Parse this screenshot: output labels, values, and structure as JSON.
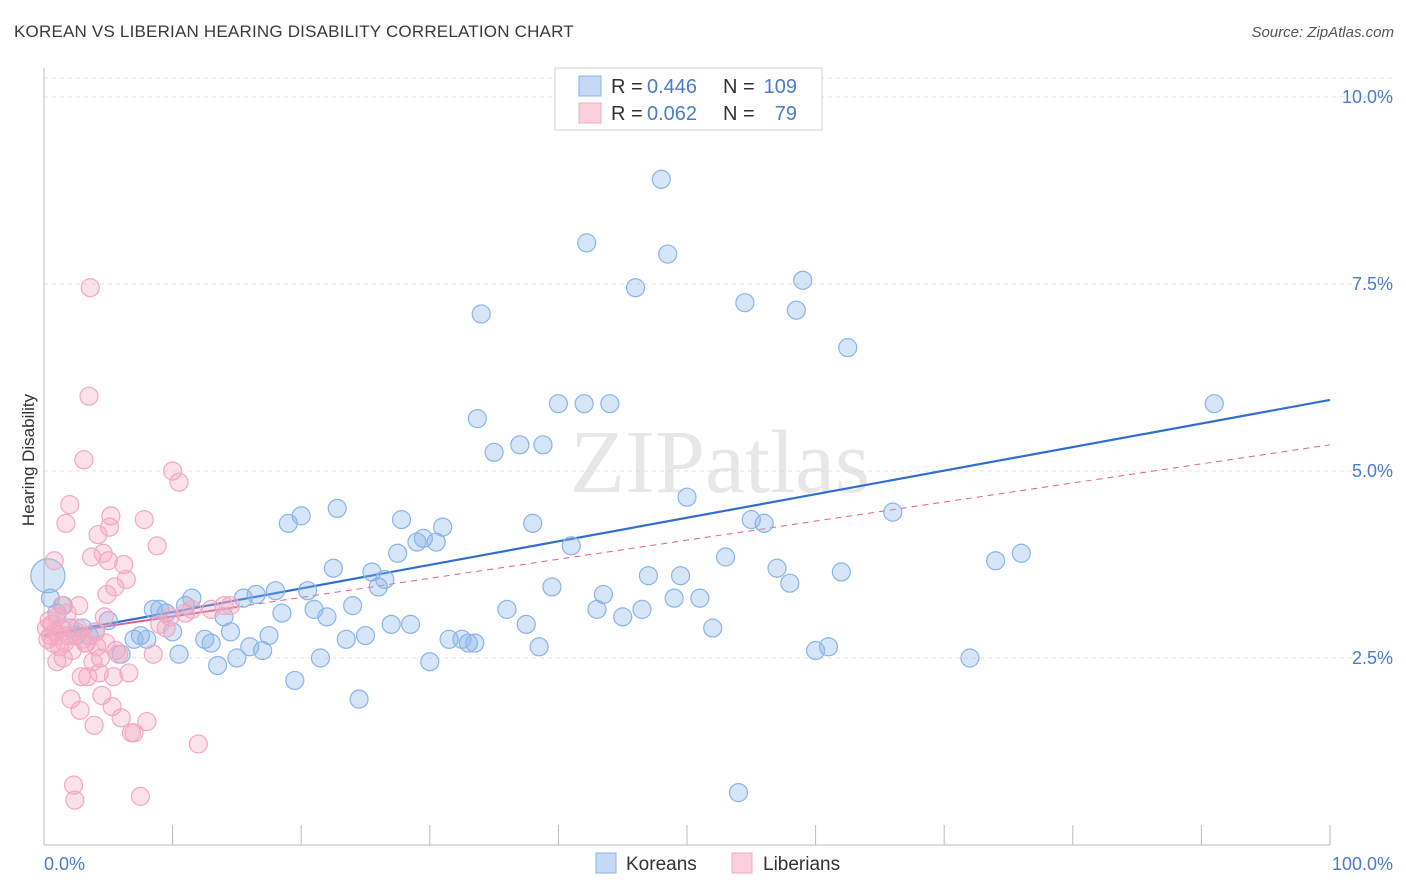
{
  "chart_data": {
    "type": "scatter",
    "title": "KOREAN VS LIBERIAN HEARING DISABILITY CORRELATION CHART",
    "source": "Source: ZipAtlas.com",
    "ylabel": "Hearing Disability",
    "xlabel": "",
    "xlim": [
      0,
      100
    ],
    "ylim": [
      0,
      10
    ],
    "x_tick_labels": [
      "0.0%",
      "100.0%"
    ],
    "y_ticks": [
      2.5,
      5.0,
      7.5,
      10.0
    ],
    "y_tick_labels": [
      "2.5%",
      "5.0%",
      "7.5%",
      "10.0%"
    ],
    "watermark": "ZIPatlas",
    "legend": {
      "rows": [
        {
          "r_label": "R =",
          "r_value": "0.446",
          "n_label": "N =",
          "n_value": "109"
        },
        {
          "r_label": "R =",
          "r_value": "0.062",
          "n_label": "N =",
          "n_value": "79"
        }
      ]
    },
    "series": [
      {
        "name": "Koreans",
        "color": "#8ab4e8",
        "line_color": "#2f6fcf",
        "trend": {
          "x0": 0,
          "y0": 2.8,
          "x1": 100,
          "y1": 5.95
        },
        "points": [
          [
            0.3,
            3.6
          ],
          [
            0.5,
            3.3
          ],
          [
            1,
            3.1
          ],
          [
            1.5,
            3.2
          ],
          [
            2,
            2.9
          ],
          [
            2.5,
            2.8
          ],
          [
            3,
            2.9
          ],
          [
            3.5,
            2.8
          ],
          [
            4,
            2.85
          ],
          [
            5,
            3.0
          ],
          [
            6,
            2.55
          ],
          [
            7,
            2.75
          ],
          [
            7.5,
            2.8
          ],
          [
            8,
            2.75
          ],
          [
            8.5,
            3.15
          ],
          [
            9.5,
            3.1
          ],
          [
            10,
            2.85
          ],
          [
            10.5,
            2.55
          ],
          [
            11,
            3.2
          ],
          [
            12.5,
            2.75
          ],
          [
            13,
            2.7
          ],
          [
            13.5,
            2.4
          ],
          [
            14,
            3.05
          ],
          [
            14.5,
            2.85
          ],
          [
            15,
            2.5
          ],
          [
            15.5,
            3.3
          ],
          [
            16,
            2.65
          ],
          [
            16.5,
            3.35
          ],
          [
            17,
            2.6
          ],
          [
            17.5,
            2.8
          ],
          [
            18,
            3.4
          ],
          [
            18.5,
            3.1
          ],
          [
            19,
            4.3
          ],
          [
            19.5,
            2.2
          ],
          [
            20,
            4.4
          ],
          [
            20.5,
            3.4
          ],
          [
            21,
            3.15
          ],
          [
            21.5,
            2.5
          ],
          [
            22,
            3.05
          ],
          [
            22.5,
            3.7
          ],
          [
            22.8,
            4.5
          ],
          [
            23.5,
            2.75
          ],
          [
            24,
            3.2
          ],
          [
            24.5,
            1.95
          ],
          [
            25,
            2.8
          ],
          [
            25.5,
            3.65
          ],
          [
            26,
            3.45
          ],
          [
            26.5,
            3.55
          ],
          [
            27,
            2.95
          ],
          [
            27.5,
            3.9
          ],
          [
            27.8,
            4.35
          ],
          [
            28.5,
            2.95
          ],
          [
            29,
            4.05
          ],
          [
            29.5,
            4.1
          ],
          [
            30,
            2.45
          ],
          [
            30.5,
            4.05
          ],
          [
            31,
            4.25
          ],
          [
            31.5,
            2.75
          ],
          [
            32.5,
            2.75
          ],
          [
            33,
            2.7
          ],
          [
            33.5,
            2.7
          ],
          [
            33.7,
            5.7
          ],
          [
            34,
            7.1
          ],
          [
            35,
            5.25
          ],
          [
            36,
            3.15
          ],
          [
            37,
            5.35
          ],
          [
            37.5,
            2.95
          ],
          [
            38,
            4.3
          ],
          [
            38.5,
            2.65
          ],
          [
            38.8,
            5.35
          ],
          [
            39.5,
            3.45
          ],
          [
            40,
            5.9
          ],
          [
            41,
            4.0
          ],
          [
            42,
            5.9
          ],
          [
            42.2,
            8.05
          ],
          [
            43,
            3.15
          ],
          [
            44,
            5.9
          ],
          [
            45,
            3.05
          ],
          [
            46,
            7.45
          ],
          [
            46.5,
            3.15
          ],
          [
            47,
            3.6
          ],
          [
            48,
            8.9
          ],
          [
            48.5,
            7.9
          ],
          [
            49,
            3.3
          ],
          [
            49.5,
            3.6
          ],
          [
            50,
            4.65
          ],
          [
            51,
            3.3
          ],
          [
            53,
            3.85
          ],
          [
            54,
            0.7
          ],
          [
            54.5,
            7.25
          ],
          [
            55,
            4.35
          ],
          [
            56,
            4.3
          ],
          [
            57,
            3.7
          ],
          [
            58,
            3.5
          ],
          [
            58.5,
            7.15
          ],
          [
            59,
            7.55
          ],
          [
            60,
            2.6
          ],
          [
            61,
            2.65
          ],
          [
            62,
            3.65
          ],
          [
            62.5,
            6.65
          ],
          [
            66,
            4.45
          ],
          [
            72,
            2.5
          ],
          [
            74,
            3.8
          ],
          [
            76,
            3.9
          ],
          [
            91,
            5.9
          ],
          [
            43.5,
            3.35
          ],
          [
            52,
            2.9
          ],
          [
            9,
            3.15
          ],
          [
            11.5,
            3.3
          ]
        ]
      },
      {
        "name": "Liberians",
        "color": "#f4a8c0",
        "line_color": "#e0608a",
        "trend": {
          "x0": 0,
          "y0": 2.8,
          "x1": 100,
          "y1": 5.35
        },
        "trend_solid_end": 15,
        "points": [
          [
            0.2,
            2.9
          ],
          [
            0.3,
            2.75
          ],
          [
            0.4,
            3.0
          ],
          [
            0.5,
            2.8
          ],
          [
            0.6,
            2.95
          ],
          [
            0.7,
            2.7
          ],
          [
            0.8,
            3.8
          ],
          [
            0.9,
            2.85
          ],
          [
            1,
            3.05
          ],
          [
            1.1,
            2.8
          ],
          [
            1.2,
            2.65
          ],
          [
            1.3,
            2.9
          ],
          [
            1.4,
            3.2
          ],
          [
            1.5,
            2.5
          ],
          [
            1.6,
            2.7
          ],
          [
            1.7,
            4.3
          ],
          [
            1.8,
            3.1
          ],
          [
            1.9,
            2.8
          ],
          [
            2,
            4.55
          ],
          [
            2.1,
            1.95
          ],
          [
            2.2,
            2.6
          ],
          [
            2.3,
            0.8
          ],
          [
            2.4,
            0.6
          ],
          [
            2.5,
            2.85
          ],
          [
            2.6,
            2.9
          ],
          [
            2.7,
            3.2
          ],
          [
            2.8,
            1.8
          ],
          [
            2.9,
            2.25
          ],
          [
            3,
            2.75
          ],
          [
            3.1,
            5.15
          ],
          [
            3.2,
            2.7
          ],
          [
            3.3,
            2.7
          ],
          [
            3.4,
            2.25
          ],
          [
            3.5,
            6.0
          ],
          [
            3.6,
            7.45
          ],
          [
            3.7,
            3.85
          ],
          [
            3.8,
            2.45
          ],
          [
            3.9,
            1.6
          ],
          [
            4,
            2.85
          ],
          [
            4.1,
            2.65
          ],
          [
            4.2,
            4.15
          ],
          [
            4.3,
            2.3
          ],
          [
            4.4,
            2.5
          ],
          [
            4.5,
            2.0
          ],
          [
            4.6,
            3.9
          ],
          [
            4.7,
            3.05
          ],
          [
            4.8,
            2.7
          ],
          [
            4.9,
            3.35
          ],
          [
            5,
            3.8
          ],
          [
            5.1,
            4.25
          ],
          [
            5.2,
            4.4
          ],
          [
            5.3,
            1.85
          ],
          [
            5.4,
            2.25
          ],
          [
            5.5,
            3.45
          ],
          [
            5.6,
            2.6
          ],
          [
            5.8,
            2.55
          ],
          [
            6,
            1.7
          ],
          [
            6.2,
            3.75
          ],
          [
            6.4,
            3.55
          ],
          [
            6.6,
            2.3
          ],
          [
            6.8,
            1.5
          ],
          [
            7,
            1.5
          ],
          [
            7.5,
            0.65
          ],
          [
            7.8,
            4.35
          ],
          [
            8,
            1.65
          ],
          [
            8.5,
            2.55
          ],
          [
            8.8,
            4.0
          ],
          [
            9,
            2.95
          ],
          [
            9.5,
            2.9
          ],
          [
            10,
            5.0
          ],
          [
            10.5,
            4.85
          ],
          [
            11,
            3.1
          ],
          [
            11.5,
            3.15
          ],
          [
            12,
            1.35
          ],
          [
            13,
            3.15
          ],
          [
            14,
            3.2
          ],
          [
            14.5,
            3.2
          ],
          [
            9.8,
            3.05
          ],
          [
            1.0,
            2.45
          ]
        ]
      }
    ]
  },
  "bottom_legend": {
    "koreans": "Koreans",
    "liberians": "Liberians"
  }
}
